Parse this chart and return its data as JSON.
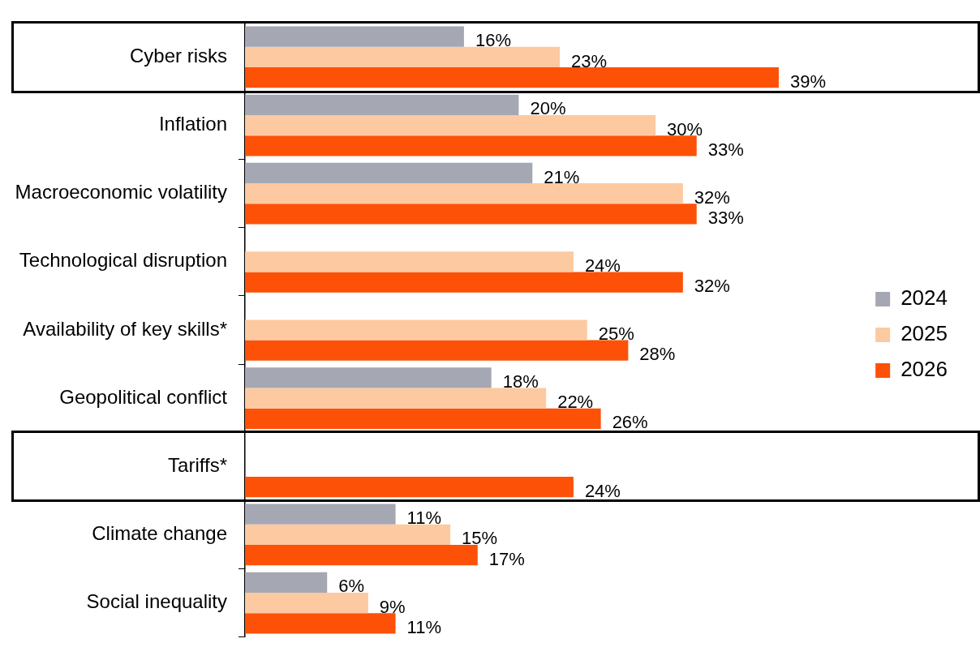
{
  "chart_data": {
    "type": "bar",
    "orientation": "horizontal",
    "legend": "right",
    "categories": [
      "Cyber risks",
      "Inflation",
      "Macroeconomic volatility",
      "Technological disruption",
      "Availability of key skills*",
      "Geopolitical conflict",
      "Tariffs*",
      "Climate change",
      "Social inequality"
    ],
    "series": [
      {
        "name": "2024",
        "color": "#a5a8b3",
        "values": [
          16,
          20,
          21,
          null,
          null,
          18,
          null,
          11,
          6
        ],
        "value_labels": [
          "16%",
          "20%",
          "21%",
          null,
          null,
          "18%",
          null,
          "11%",
          "6%"
        ]
      },
      {
        "name": "2025",
        "color": "#fdc9a0",
        "values": [
          23,
          30,
          32,
          24,
          25,
          22,
          null,
          15,
          9
        ],
        "value_labels": [
          "23%",
          "30%",
          "32%",
          "24%",
          "25%",
          "22%",
          null,
          "15%",
          "9%"
        ]
      },
      {
        "name": "2026",
        "color": "#fd5108",
        "values": [
          39,
          33,
          33,
          32,
          28,
          26,
          24,
          17,
          11
        ],
        "value_labels": [
          "39%",
          "33%",
          "33%",
          "32%",
          "28%",
          "26%",
          "24%",
          "17%",
          "11%"
        ]
      }
    ]
  }
}
